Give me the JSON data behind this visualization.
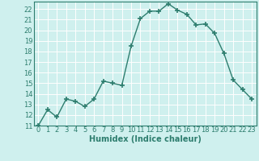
{
  "x": [
    0,
    1,
    2,
    3,
    4,
    5,
    6,
    7,
    8,
    9,
    10,
    11,
    12,
    13,
    14,
    15,
    16,
    17,
    18,
    19,
    20,
    21,
    22,
    23
  ],
  "y": [
    11,
    12.5,
    11.8,
    13.5,
    13.3,
    12.8,
    13.5,
    15.2,
    15.0,
    14.8,
    18.5,
    21.1,
    21.8,
    21.8,
    22.5,
    21.9,
    21.5,
    20.5,
    20.6,
    19.7,
    17.8,
    15.3,
    14.4,
    13.5
  ],
  "line_color": "#2d7d6e",
  "marker": "+",
  "marker_size": 4,
  "bg_color": "#cff0ee",
  "grid_white": "#ffffff",
  "grid_pink": "#d8c8c8",
  "xlabel": "Humidex (Indice chaleur)",
  "ylim": [
    11,
    22.7
  ],
  "xlim": [
    -0.5,
    23.5
  ],
  "yticks": [
    11,
    12,
    13,
    14,
    15,
    16,
    17,
    18,
    19,
    20,
    21,
    22
  ],
  "xticks": [
    0,
    1,
    2,
    3,
    4,
    5,
    6,
    7,
    8,
    9,
    10,
    11,
    12,
    13,
    14,
    15,
    16,
    17,
    18,
    19,
    20,
    21,
    22,
    23
  ],
  "tick_fontsize": 6,
  "label_fontsize": 7
}
